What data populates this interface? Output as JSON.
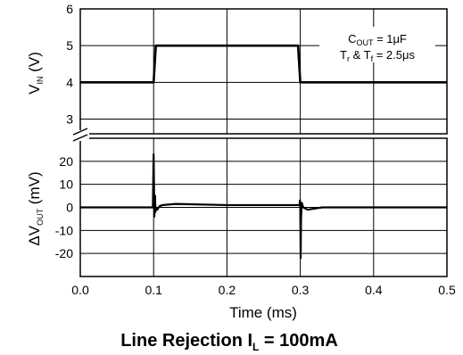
{
  "chart_data": {
    "type": "line",
    "title": {
      "main": "Line Rejection I",
      "sub": "L",
      "rest": " = 100mA"
    },
    "xlabel": "Time (ms)",
    "xlim": [
      0,
      0.5
    ],
    "x_ticks": [
      "0.0",
      "0.1",
      "0.2",
      "0.3",
      "0.4",
      "0.5"
    ],
    "grid": true,
    "annotations": {
      "line1": {
        "a": "C",
        "a_sub": "OUT",
        "b": " = 1μF"
      },
      "line2": {
        "a": "T",
        "a_sub": "r",
        "b": " & T",
        "b_sub": "f",
        "c": " = 2.5μs"
      }
    },
    "top_panel": {
      "ylabel": {
        "main": "V",
        "sub": "IN",
        "rest": " (V)"
      },
      "ylim": [
        2.6,
        6
      ],
      "y_ticks": [
        "3",
        "4",
        "5",
        "6"
      ],
      "series": [
        {
          "x": [
            0,
            0.1,
            0.103,
            0.297,
            0.3,
            0.5
          ],
          "y": [
            4,
            4,
            5,
            5,
            4,
            4
          ]
        }
      ]
    },
    "bottom_panel": {
      "ylabel": {
        "main": "ΔV",
        "sub": "OUT",
        "rest": " (mV)"
      },
      "ylim": [
        -30,
        30
      ],
      "y_ticks": [
        "20",
        "10",
        "0",
        "-10",
        "-20"
      ],
      "series": [
        {
          "x": [
            0,
            0.099,
            0.1,
            0.1005,
            0.101,
            0.102,
            0.1025,
            0.103,
            0.105,
            0.108,
            0.112,
            0.13,
            0.2,
            0.28,
            0.299,
            0.2995,
            0.3,
            0.3005,
            0.301,
            0.302,
            0.304,
            0.31,
            0.33,
            0.4,
            0.5
          ],
          "y": [
            0,
            0,
            23,
            10,
            -4,
            5,
            -2,
            0,
            -1,
            0.5,
            1,
            1.5,
            1,
            1,
            1,
            3,
            0,
            -22,
            -5,
            2,
            0,
            -1,
            0,
            0,
            0
          ]
        }
      ]
    }
  }
}
